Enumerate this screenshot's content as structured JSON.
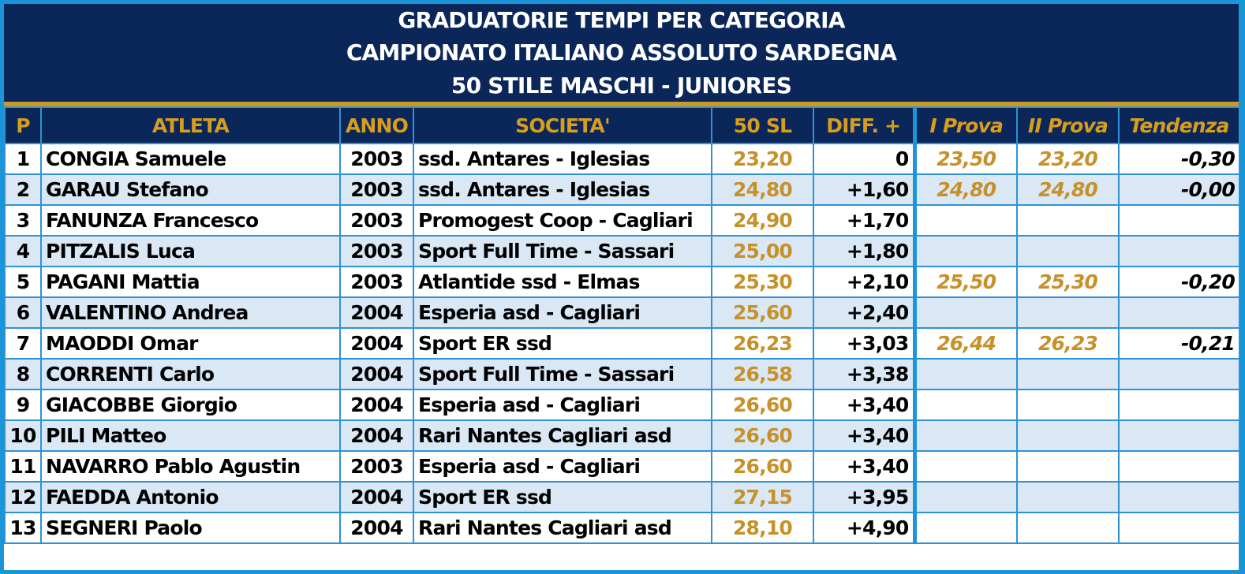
{
  "title": {
    "line1": "GRADUATORIE TEMPI PER CATEGORIA",
    "line2": "CAMPIONATO ITALIANO ASSOLUTO SARDEGNA",
    "line3": "50 STILE MASCHI - JUNIORES"
  },
  "headers": {
    "pos": "P",
    "athlete": "ATLETA",
    "year": "ANNO",
    "club": "SOCIETA'",
    "time": "50 SL",
    "diff": "DIFF. +",
    "trial1": "I Prova",
    "trial2": "II Prova",
    "trend": "Tendenza"
  },
  "rows": [
    {
      "pos": "1",
      "athlete": "CONGIA Samuele",
      "year": "2003",
      "club": "ssd. Antares - Iglesias",
      "time": "23,20",
      "diff": "0",
      "trial1": "23,50",
      "trial2": "23,20",
      "trend": "-0,30"
    },
    {
      "pos": "2",
      "athlete": "GARAU Stefano",
      "year": "2003",
      "club": "ssd. Antares - Iglesias",
      "time": "24,80",
      "diff": "+1,60",
      "trial1": "24,80",
      "trial2": "24,80",
      "trend": "-0,00"
    },
    {
      "pos": "3",
      "athlete": "FANUNZA Francesco",
      "year": "2003",
      "club": "Promogest Coop - Cagliari",
      "time": "24,90",
      "diff": "+1,70",
      "trial1": "",
      "trial2": "",
      "trend": ""
    },
    {
      "pos": "4",
      "athlete": "PITZALIS Luca",
      "year": "2003",
      "club": "Sport Full Time - Sassari",
      "time": "25,00",
      "diff": "+1,80",
      "trial1": "",
      "trial2": "",
      "trend": ""
    },
    {
      "pos": "5",
      "athlete": "PAGANI Mattia",
      "year": "2003",
      "club": "Atlantide ssd - Elmas",
      "time": "25,30",
      "diff": "+2,10",
      "trial1": "25,50",
      "trial2": "25,30",
      "trend": "-0,20"
    },
    {
      "pos": "6",
      "athlete": "VALENTINO Andrea",
      "year": "2004",
      "club": "Esperia asd - Cagliari",
      "time": "25,60",
      "diff": "+2,40",
      "trial1": "",
      "trial2": "",
      "trend": ""
    },
    {
      "pos": "7",
      "athlete": "MAODDI Omar",
      "year": "2004",
      "club": "Sport ER ssd",
      "time": "26,23",
      "diff": "+3,03",
      "trial1": "26,44",
      "trial2": "26,23",
      "trend": "-0,21"
    },
    {
      "pos": "8",
      "athlete": "CORRENTI Carlo",
      "year": "2004",
      "club": "Sport Full Time - Sassari",
      "time": "26,58",
      "diff": "+3,38",
      "trial1": "",
      "trial2": "",
      "trend": ""
    },
    {
      "pos": "9",
      "athlete": "GIACOBBE Giorgio",
      "year": "2004",
      "club": "Esperia asd - Cagliari",
      "time": "26,60",
      "diff": "+3,40",
      "trial1": "",
      "trial2": "",
      "trend": ""
    },
    {
      "pos": "10",
      "athlete": "PILI Matteo",
      "year": "2004",
      "club": "Rari Nantes Cagliari asd",
      "time": "26,60",
      "diff": "+3,40",
      "trial1": "",
      "trial2": "",
      "trend": ""
    },
    {
      "pos": "11",
      "athlete": "NAVARRO Pablo Agustin",
      "year": "2003",
      "club": "Esperia asd - Cagliari",
      "time": "26,60",
      "diff": "+3,40",
      "trial1": "",
      "trial2": "",
      "trend": ""
    },
    {
      "pos": "12",
      "athlete": "FAEDDA Antonio",
      "year": "2004",
      "club": "Sport ER ssd",
      "time": "27,15",
      "diff": "+3,95",
      "trial1": "",
      "trial2": "",
      "trend": ""
    },
    {
      "pos": "13",
      "athlete": "SEGNERI Paolo",
      "year": "2004",
      "club": "Rari Nantes Cagliari asd",
      "time": "28,10",
      "diff": "+4,90",
      "trial1": "",
      "trial2": "",
      "trend": ""
    }
  ],
  "colors": {
    "header_navy": "#0b2659",
    "gold": "#c99a25",
    "border_blue": "#1a96d8",
    "row_alt": "#dae8f5"
  }
}
